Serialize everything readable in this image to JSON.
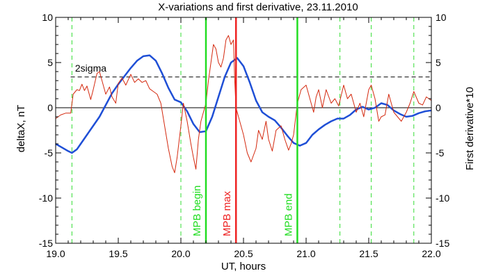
{
  "chart_data": {
    "type": "line",
    "title": "X-variations and first derivative, 23.11.2010",
    "xlabel": "UT, hours",
    "ylabel_left": "deltaX, nT",
    "ylabel_right": "First derivative*10",
    "xlim": [
      19.0,
      22.0
    ],
    "ylim": [
      -15,
      10
    ],
    "x_ticks": [
      19.0,
      19.5,
      20.0,
      20.5,
      21.0,
      21.5,
      22.0
    ],
    "x_tick_labels": [
      "19.0",
      "19.5",
      "20.0",
      "20.5",
      "21.0",
      "21.5",
      "22.0"
    ],
    "y_ticks": [
      -15,
      -10,
      -5,
      0,
      5,
      10
    ],
    "y_tick_labels": [
      "-15",
      "-10",
      "-5",
      "0",
      "5",
      "10"
    ],
    "sigma_label": "2sigma",
    "sigma_level": 3.4,
    "zero_level": 0,
    "dashed_markers": [
      19.13,
      20.0,
      21.27,
      21.52,
      21.86
    ],
    "events": [
      {
        "label": "MPB begin",
        "x": 20.2,
        "color": "#22dd22"
      },
      {
        "label": "MPB max",
        "x": 20.44,
        "color": "#ee2222"
      },
      {
        "label": "MPB end",
        "x": 20.93,
        "color": "#22dd22"
      }
    ],
    "colors": {
      "deltaX": "#1f4fd6",
      "derivative": "#d42a10",
      "marker_green": "#33dd33",
      "left_label": "#1f4fd6",
      "right_label": "#ee2222"
    },
    "series": [
      {
        "key": "deltaX",
        "x": [
          19.0,
          19.05,
          19.1,
          19.13,
          19.17,
          19.2,
          19.25,
          19.3,
          19.35,
          19.4,
          19.45,
          19.5,
          19.55,
          19.6,
          19.65,
          19.7,
          19.75,
          19.8,
          19.85,
          19.9,
          19.95,
          20.0,
          20.05,
          20.1,
          20.15,
          20.2,
          20.25,
          20.3,
          20.35,
          20.4,
          20.45,
          20.5,
          20.55,
          20.6,
          20.65,
          20.7,
          20.75,
          20.8,
          20.85,
          20.9,
          20.95,
          21.0,
          21.05,
          21.1,
          21.15,
          21.2,
          21.25,
          21.3,
          21.35,
          21.4,
          21.45,
          21.5,
          21.55,
          21.6,
          21.65,
          21.7,
          21.75,
          21.8,
          21.85,
          21.9,
          21.95,
          22.0
        ],
        "y": [
          -4.0,
          -4.4,
          -4.8,
          -5.0,
          -4.6,
          -4.0,
          -3.0,
          -2.0,
          -1.0,
          0.3,
          1.6,
          2.6,
          3.5,
          4.4,
          5.2,
          5.7,
          5.8,
          5.2,
          3.8,
          2.2,
          0.9,
          0.6,
          -0.4,
          -1.8,
          -2.7,
          -2.6,
          -1.0,
          1.2,
          3.4,
          5.0,
          5.5,
          4.6,
          2.8,
          0.8,
          -0.5,
          -1.0,
          -1.4,
          -2.2,
          -3.1,
          -3.9,
          -4.2,
          -3.9,
          -3.0,
          -2.4,
          -1.9,
          -1.5,
          -1.2,
          -1.2,
          -0.8,
          -0.2,
          0.1,
          -0.2,
          0.0,
          0.5,
          0.3,
          -0.3,
          -0.7,
          -1.0,
          -0.9,
          -0.6,
          -0.4,
          -0.3
        ]
      },
      {
        "key": "derivative",
        "x": [
          19.0,
          19.04,
          19.08,
          19.12,
          19.14,
          19.17,
          19.19,
          19.21,
          19.23,
          19.25,
          19.28,
          19.3,
          19.33,
          19.35,
          19.37,
          19.4,
          19.43,
          19.45,
          19.48,
          19.5,
          19.53,
          19.56,
          19.6,
          19.63,
          19.66,
          19.69,
          19.72,
          19.75,
          19.78,
          19.81,
          19.84,
          19.87,
          19.9,
          19.93,
          19.95,
          19.97,
          20.0,
          20.02,
          20.05,
          20.08,
          20.1,
          20.12,
          20.14,
          20.16,
          20.18,
          20.2,
          20.22,
          20.24,
          20.26,
          20.28,
          20.3,
          20.32,
          20.34,
          20.36,
          20.38,
          20.4,
          20.42,
          20.43,
          20.44,
          20.45,
          20.47,
          20.5,
          20.53,
          20.56,
          20.6,
          20.62,
          20.65,
          20.68,
          20.7,
          20.73,
          20.76,
          20.8,
          20.83,
          20.86,
          20.88,
          20.9,
          20.93,
          20.96,
          21.0,
          21.03,
          21.06,
          21.08,
          21.1,
          21.13,
          21.16,
          21.2,
          21.23,
          21.26,
          21.3,
          21.33,
          21.36,
          21.4,
          21.43,
          21.46,
          21.5,
          21.52,
          21.55,
          21.58,
          21.6,
          21.63,
          21.66,
          21.7,
          21.73,
          21.76,
          21.8,
          21.83,
          21.86,
          21.9,
          21.93,
          21.96,
          22.0
        ],
        "y": [
          -1.2,
          -0.8,
          -0.6,
          -0.6,
          1.5,
          2.0,
          1.9,
          2.6,
          1.9,
          2.4,
          0.9,
          2.0,
          3.8,
          4.0,
          3.0,
          1.5,
          2.3,
          1.2,
          0.5,
          2.7,
          3.3,
          2.5,
          3.7,
          2.8,
          3.2,
          2.8,
          3.0,
          2.1,
          1.8,
          1.5,
          0.5,
          -2.0,
          -4.5,
          -6.5,
          -7.2,
          -5.5,
          -2.0,
          0.5,
          -1.5,
          -4.0,
          -5.5,
          -6.8,
          -3.5,
          -1.5,
          -0.5,
          0.5,
          3.0,
          5.0,
          7.0,
          6.5,
          5.0,
          4.5,
          5.5,
          7.5,
          8.0,
          7.0,
          7.5,
          3.0,
          0.0,
          -0.5,
          -1.5,
          -3.0,
          -5.0,
          -6.0,
          -4.5,
          -2.5,
          -3.5,
          -1.5,
          -3.5,
          -4.8,
          -2.5,
          -2.0,
          -3.5,
          -4.7,
          -4.0,
          -3.0,
          0.5,
          2.0,
          2.5,
          1.0,
          -0.5,
          1.2,
          2.0,
          0.0,
          2.0,
          0.5,
          1.0,
          0.2,
          2.5,
          1.0,
          1.5,
          -0.5,
          0.5,
          -1.0,
          2.0,
          2.5,
          1.0,
          -1.5,
          -1.0,
          -0.8,
          1.5,
          -0.5,
          -1.0,
          -1.5,
          -0.5,
          0.5,
          1.8,
          0.5,
          0.3,
          1.2,
          0.8
        ]
      }
    ]
  }
}
